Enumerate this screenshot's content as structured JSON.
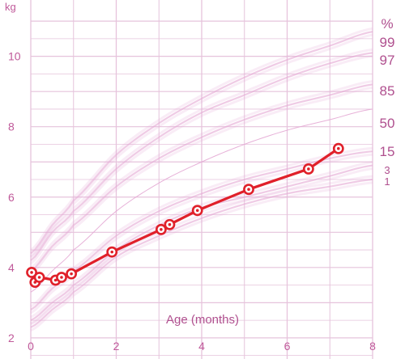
{
  "chart_data": {
    "type": "line",
    "ylabel": "kg",
    "xlabel": "Age (months)",
    "percentile_label": "%",
    "xlim": [
      0,
      8
    ],
    "ylim": [
      1.4,
      11.6
    ],
    "x_ticks": [
      0,
      2,
      4,
      6,
      8
    ],
    "y_ticks": [
      2,
      4,
      6,
      8,
      10
    ],
    "grid": true,
    "colors": {
      "grid": "#e6c3dc",
      "percentile": "#e4a9d4",
      "series": "#e0202a",
      "text": "#c05a9a"
    },
    "percentiles": [
      {
        "label": "99",
        "ages": [
          0,
          0.5,
          1,
          2,
          3,
          4,
          5,
          6,
          7,
          8
        ],
        "values": [
          4.4,
          5.2,
          5.9,
          7.2,
          8.1,
          8.8,
          9.4,
          9.9,
          10.3,
          10.7
        ]
      },
      {
        "label": "97",
        "ages": [
          0,
          0.5,
          1,
          2,
          3,
          4,
          5,
          6,
          7,
          8
        ],
        "values": [
          4.2,
          5.0,
          5.6,
          6.8,
          7.7,
          8.4,
          8.9,
          9.4,
          9.8,
          10.1
        ]
      },
      {
        "label": "85",
        "ages": [
          0,
          0.5,
          1,
          2,
          3,
          4,
          5,
          6,
          7,
          8
        ],
        "values": [
          3.9,
          4.6,
          5.2,
          6.3,
          7.1,
          7.7,
          8.2,
          8.6,
          8.9,
          9.2
        ]
      },
      {
        "label": "50",
        "ages": [
          0,
          0.5,
          1,
          2,
          3,
          4,
          5,
          6,
          7,
          8
        ],
        "values": [
          3.3,
          3.9,
          4.5,
          5.6,
          6.4,
          7.0,
          7.5,
          7.9,
          8.2,
          8.5
        ]
      },
      {
        "label": "15",
        "ages": [
          0,
          0.5,
          1,
          2,
          3,
          4,
          5,
          6,
          7,
          8
        ],
        "values": [
          2.8,
          3.4,
          3.9,
          4.9,
          5.6,
          6.1,
          6.5,
          6.8,
          7.1,
          7.3
        ]
      },
      {
        "label": "3",
        "ages": [
          0,
          0.5,
          1,
          2,
          3,
          4,
          5,
          6,
          7,
          8
        ],
        "values": [
          2.5,
          3.0,
          3.5,
          4.5,
          5.2,
          5.7,
          6.0,
          6.3,
          6.6,
          6.9
        ]
      },
      {
        "label": "1",
        "ages": [
          0,
          0.5,
          1,
          2,
          3,
          4,
          5,
          6,
          7,
          8
        ],
        "values": [
          2.3,
          2.8,
          3.3,
          4.3,
          4.9,
          5.4,
          5.8,
          6.1,
          6.3,
          6.5
        ]
      }
    ],
    "series": [
      {
        "points": [
          {
            "x": 0.02,
            "y": 3.86
          },
          {
            "x": 0.1,
            "y": 3.58
          },
          {
            "x": 0.2,
            "y": 3.72
          },
          {
            "x": 0.58,
            "y": 3.64
          },
          {
            "x": 0.72,
            "y": 3.72
          },
          {
            "x": 0.95,
            "y": 3.82
          },
          {
            "x": 1.9,
            "y": 4.44
          },
          {
            "x": 3.05,
            "y": 5.08
          },
          {
            "x": 3.25,
            "y": 5.22
          },
          {
            "x": 3.9,
            "y": 5.62
          },
          {
            "x": 5.1,
            "y": 6.22
          },
          {
            "x": 6.5,
            "y": 6.8
          },
          {
            "x": 7.2,
            "y": 7.38
          }
        ]
      }
    ]
  }
}
